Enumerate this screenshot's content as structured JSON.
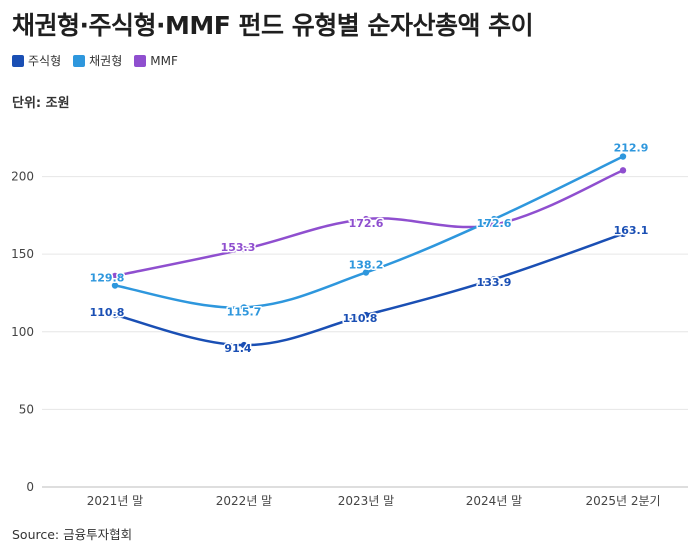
{
  "chart_data": {
    "type": "line",
    "title": "채권형·주식형·MMF 펀드 유형별 순자산총액 추이",
    "unit_label": "단위: 조원",
    "source": "Source: 금융투자협회",
    "categories": [
      "2021년 말",
      "2022년 말",
      "2023년 말",
      "2024년 말",
      "2025년 2분기"
    ],
    "ylim": [
      0,
      230
    ],
    "yticks": [
      0,
      50,
      100,
      150,
      200
    ],
    "grid": true,
    "legend_position": "top-left",
    "series": [
      {
        "name": "주식형",
        "color": "#1a4fb4",
        "values": [
          110.8,
          91.4,
          110.8,
          133.9,
          163.1
        ],
        "labels": [
          "110.8",
          "91.4",
          "110.8",
          "133.9",
          "163.1"
        ]
      },
      {
        "name": "채권형",
        "color": "#2e97dd",
        "values": [
          129.8,
          115.7,
          138.2,
          172.6,
          212.9
        ],
        "labels": [
          "129.8",
          "115.7",
          "138.2",
          "172.6",
          "212.9"
        ]
      },
      {
        "name": "MMF",
        "color": "#8f4fcf",
        "values": [
          136.0,
          153.3,
          172.6,
          169.0,
          204.0
        ],
        "labels": [
          "",
          "153.3",
          "172.6",
          "",
          ""
        ]
      }
    ]
  }
}
